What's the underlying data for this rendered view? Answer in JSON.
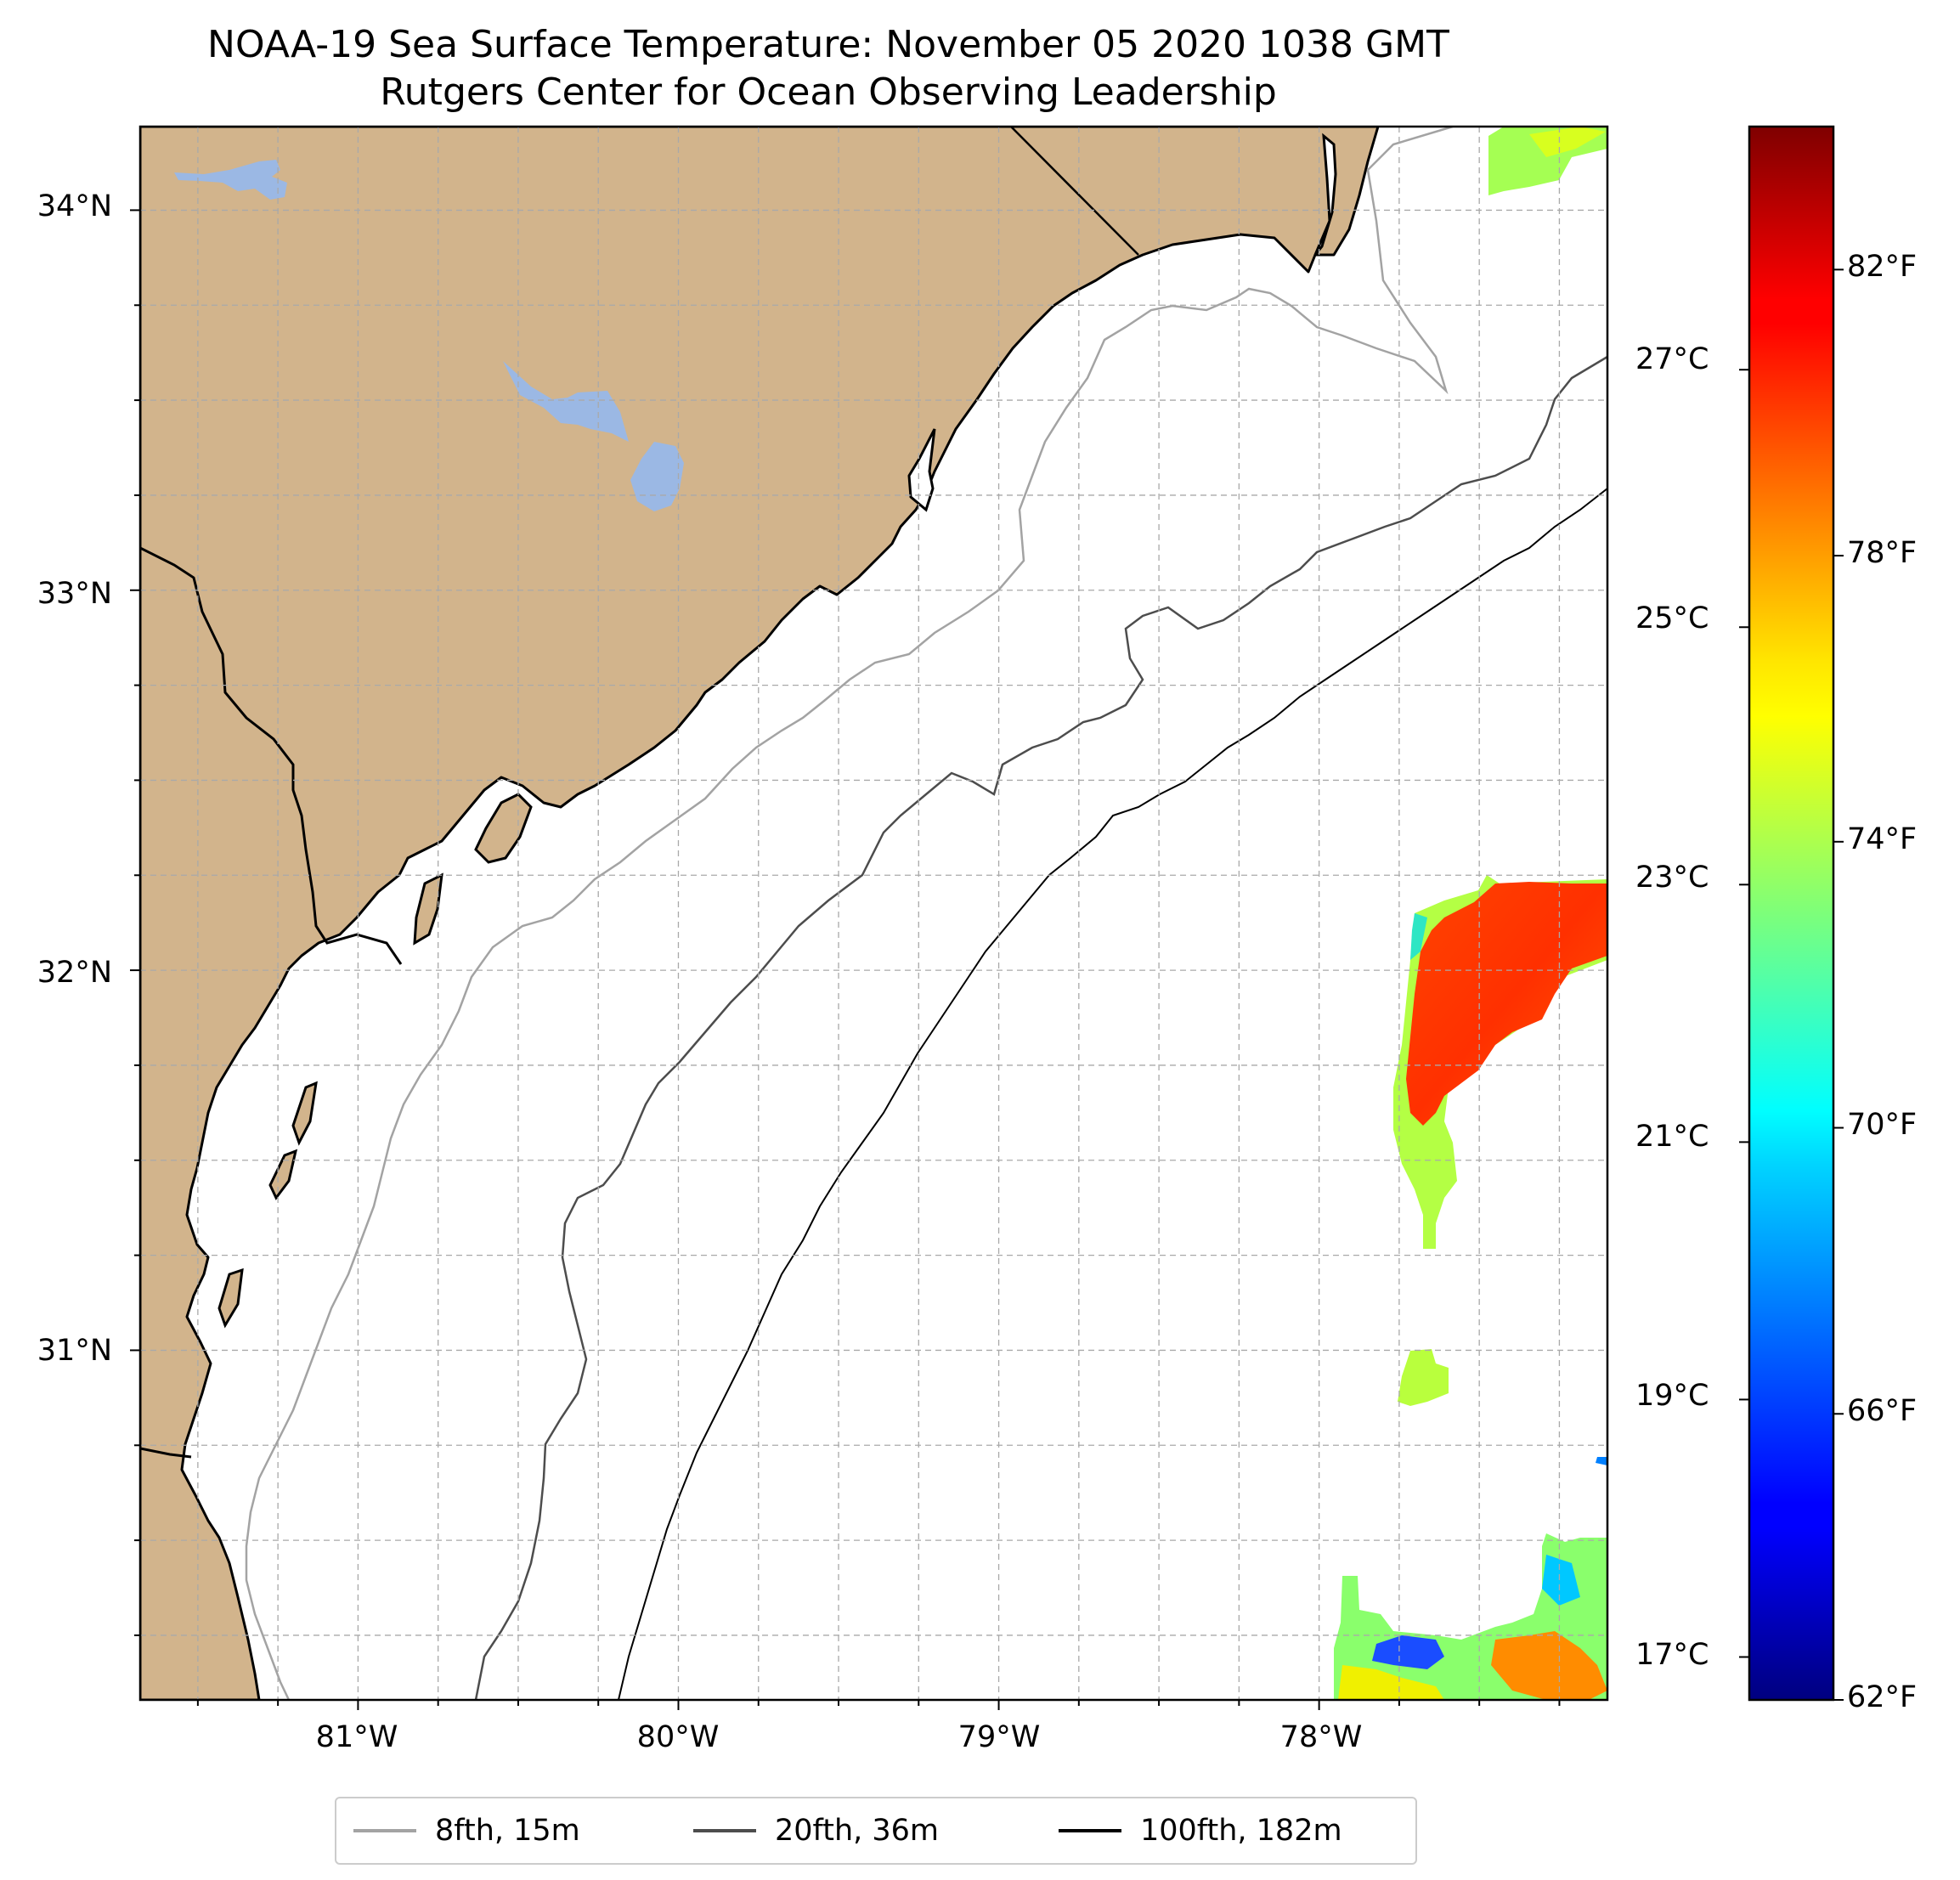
{
  "title": {
    "line1": "NOAA-19 Sea Surface Temperature: November 05 2020 1038 GMT",
    "line2": "Rutgers Center for Ocean Observing Leadership"
  },
  "map": {
    "extent": {
      "lon_min": -81.68,
      "lon_max": -77.1,
      "lat_min": 30.08,
      "lat_max": 34.22
    },
    "land_color": "#d2b48c",
    "lake_color": "#9bb8e4",
    "ocean_color": "#ffffff",
    "gridlines": "dashed, every 0.25 degrees",
    "lat_labels": [
      {
        "lat": 34,
        "text": "34°N"
      },
      {
        "lat": 33,
        "text": "33°N"
      },
      {
        "lat": 32,
        "text": "32°N"
      },
      {
        "lat": 31,
        "text": "31°N"
      }
    ],
    "lon_labels": [
      {
        "lon": -81,
        "text": "81°W"
      },
      {
        "lon": -80,
        "text": "80°W"
      },
      {
        "lon": -79,
        "text": "79°W"
      },
      {
        "lon": -78,
        "text": "78°W"
      }
    ]
  },
  "isobaths": [
    {
      "label": "8fth, 15m",
      "color": "#a3a3a3"
    },
    {
      "label": "20fth, 36m",
      "color": "#4d4d4d"
    },
    {
      "label": "100fth, 182m",
      "color": "#000000"
    }
  ],
  "colorbar": {
    "colormap": "jet",
    "range_f": [
      62,
      84
    ],
    "fahrenheit_ticks": [
      {
        "value": 62,
        "text": "62°F"
      },
      {
        "value": 66,
        "text": "66°F"
      },
      {
        "value": 70,
        "text": "70°F"
      },
      {
        "value": 74,
        "text": "74°F"
      },
      {
        "value": 78,
        "text": "78°F"
      },
      {
        "value": 82,
        "text": "82°F"
      }
    ],
    "celsius_ticks": [
      {
        "value": 17,
        "text": "17°C"
      },
      {
        "value": 19,
        "text": "19°C"
      },
      {
        "value": 21,
        "text": "21°C"
      },
      {
        "value": 23,
        "text": "23°C"
      },
      {
        "value": 25,
        "text": "25°C"
      },
      {
        "value": 27,
        "text": "27°C"
      }
    ]
  }
}
